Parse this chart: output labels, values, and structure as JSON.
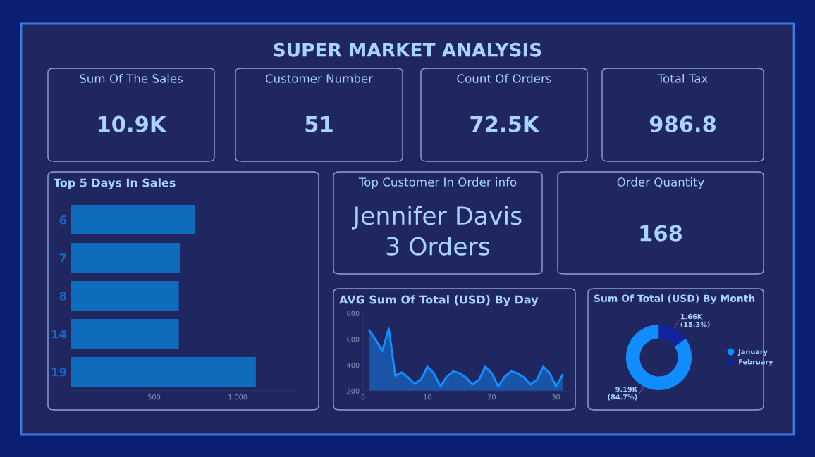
{
  "chart_data": [
    {
      "type": "other",
      "title": "SUPER MARKET ANALYSIS"
    },
    {
      "type": "other",
      "title": "Sum Of The Sales",
      "annotations": [
        "10.9K"
      ]
    },
    {
      "type": "other",
      "title": "Customer Number",
      "annotations": [
        "51"
      ]
    },
    {
      "type": "other",
      "title": "Count Of Orders",
      "annotations": [
        "72.5K"
      ]
    },
    {
      "type": "other",
      "title": "Total Tax",
      "annotations": [
        "986.8"
      ]
    },
    {
      "type": "bar",
      "title": "Top 5 Days In Sales",
      "orientation": "horizontal",
      "categories": [
        "6",
        "7",
        "8",
        "14",
        "19"
      ],
      "values": [
        747,
        658,
        648,
        648,
        1109
      ],
      "color": "#0f6cbd",
      "xlim": [
        0,
        1350
      ],
      "xticks": [
        500,
        {
          "value": 1000,
          "label": "1,000"
        }
      ],
      "grid": false
    },
    {
      "type": "other",
      "title": "Top Customer In Order info",
      "annotations": [
        "Jennifer Davis",
        "3 Orders"
      ]
    },
    {
      "type": "other",
      "title": "Order Quantity",
      "annotations": [
        "168"
      ]
    },
    {
      "type": "area",
      "title": "AVG Sum Of Total (USD) By Day",
      "x": [
        1,
        2,
        3,
        4,
        5,
        6,
        7,
        8,
        9,
        10,
        11,
        12,
        13,
        14,
        15,
        16,
        17,
        18,
        19,
        20,
        21,
        22,
        23,
        24,
        25,
        26,
        27,
        28,
        29,
        30,
        31
      ],
      "values": [
        666,
        593,
        509,
        682,
        318,
        343,
        304,
        253,
        288,
        387,
        337,
        233,
        308,
        351,
        337,
        304,
        249,
        284,
        387,
        337,
        233,
        308,
        351,
        337,
        304,
        249,
        284,
        387,
        337,
        233,
        322
      ],
      "color": "#118dff",
      "xlim": [
        0,
        32
      ],
      "ylim": [
        200,
        800
      ],
      "xticks": [
        0,
        10,
        20,
        30
      ],
      "yticks": [
        200,
        400,
        600,
        800
      ],
      "grid": false
    },
    {
      "type": "donut",
      "title": "Sum Of Total (USD) By Month",
      "categories": [
        "January",
        "February"
      ],
      "values": [
        84.7,
        15.3
      ],
      "colors": [
        "#118dff",
        "#12239e"
      ],
      "value_labels": [
        "9.19K\n(84.7%)",
        "1.66K\n(15.3%)"
      ],
      "legend": "right"
    }
  ]
}
